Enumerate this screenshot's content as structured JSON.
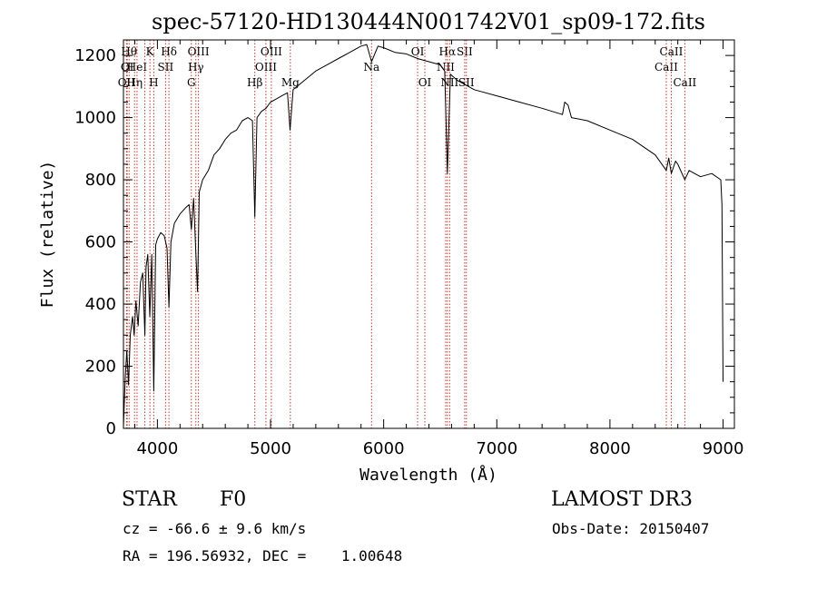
{
  "chart_data": {
    "type": "line",
    "title": "spec-57120-HD130444N001742V01_sp09-172.fits",
    "xlabel": "Wavelength (Å)",
    "ylabel": "Flux (relative)",
    "xlim": [
      3700,
      9100
    ],
    "ylim": [
      0,
      1250
    ],
    "x_ticks": [
      4000,
      5000,
      6000,
      7000,
      8000,
      9000
    ],
    "x_tick_labels": [
      "4000",
      "5000",
      "6000",
      "7000",
      "8000",
      "9000"
    ],
    "y_ticks": [
      0,
      200,
      400,
      600,
      800,
      1000,
      1200
    ],
    "y_tick_labels": [
      "0",
      "200",
      "400",
      "600",
      "800",
      "1000",
      "1200"
    ],
    "grid": false,
    "series": [
      {
        "color": "#000000",
        "points": [
          [
            3700,
            5
          ],
          [
            3715,
            160
          ],
          [
            3730,
            250
          ],
          [
            3745,
            140
          ],
          [
            3760,
            300
          ],
          [
            3780,
            360
          ],
          [
            3795,
            300
          ],
          [
            3810,
            410
          ],
          [
            3830,
            330
          ],
          [
            3850,
            470
          ],
          [
            3870,
            500
          ],
          [
            3889,
            300
          ],
          [
            3900,
            520
          ],
          [
            3915,
            560
          ],
          [
            3933,
            360
          ],
          [
            3950,
            560
          ],
          [
            3968,
            120
          ],
          [
            3985,
            590
          ],
          [
            4000,
            610
          ],
          [
            4030,
            630
          ],
          [
            4060,
            620
          ],
          [
            4085,
            580
          ],
          [
            4102,
            390
          ],
          [
            4120,
            600
          ],
          [
            4150,
            660
          ],
          [
            4200,
            690
          ],
          [
            4250,
            710
          ],
          [
            4280,
            720
          ],
          [
            4300,
            640
          ],
          [
            4320,
            740
          ],
          [
            4340,
            560
          ],
          [
            4355,
            440
          ],
          [
            4370,
            760
          ],
          [
            4400,
            800
          ],
          [
            4450,
            830
          ],
          [
            4500,
            880
          ],
          [
            4550,
            900
          ],
          [
            4600,
            930
          ],
          [
            4650,
            950
          ],
          [
            4700,
            960
          ],
          [
            4750,
            990
          ],
          [
            4800,
            1000
          ],
          [
            4840,
            990
          ],
          [
            4861,
            680
          ],
          [
            4880,
            1000
          ],
          [
            4920,
            1020
          ],
          [
            4960,
            1030
          ],
          [
            5000,
            1050
          ],
          [
            5050,
            1060
          ],
          [
            5100,
            1070
          ],
          [
            5150,
            1080
          ],
          [
            5172,
            960
          ],
          [
            5200,
            1090
          ],
          [
            5300,
            1120
          ],
          [
            5400,
            1150
          ],
          [
            5500,
            1170
          ],
          [
            5600,
            1190
          ],
          [
            5700,
            1210
          ],
          [
            5800,
            1230
          ],
          [
            5850,
            1235
          ],
          [
            5893,
            1180
          ],
          [
            5950,
            1230
          ],
          [
            6000,
            1225
          ],
          [
            6100,
            1210
          ],
          [
            6200,
            1205
          ],
          [
            6300,
            1190
          ],
          [
            6400,
            1180
          ],
          [
            6500,
            1170
          ],
          [
            6540,
            1150
          ],
          [
            6563,
            820
          ],
          [
            6590,
            1140
          ],
          [
            6650,
            1120
          ],
          [
            6700,
            1110
          ],
          [
            6800,
            1090
          ],
          [
            7000,
            1070
          ],
          [
            7200,
            1050
          ],
          [
            7400,
            1030
          ],
          [
            7580,
            1010
          ],
          [
            7600,
            1050
          ],
          [
            7630,
            1040
          ],
          [
            7660,
            1000
          ],
          [
            7800,
            990
          ],
          [
            8000,
            960
          ],
          [
            8200,
            930
          ],
          [
            8400,
            880
          ],
          [
            8498,
            830
          ],
          [
            8520,
            870
          ],
          [
            8542,
            820
          ],
          [
            8580,
            860
          ],
          [
            8600,
            850
          ],
          [
            8662,
            800
          ],
          [
            8700,
            830
          ],
          [
            8800,
            810
          ],
          [
            8900,
            820
          ],
          [
            8980,
            800
          ],
          [
            8990,
            720
          ],
          [
            9000,
            150
          ]
        ]
      }
    ],
    "line_markers": [
      {
        "x": 3727,
        "label": "OII",
        "row": 3
      },
      {
        "x": 3733,
        "label": "OI",
        "row": 2
      },
      {
        "x": 3750,
        "label": "Hθ",
        "row": 1
      },
      {
        "x": 3798,
        "label": "Hη",
        "row": 3
      },
      {
        "x": 3820,
        "label": "HeI",
        "row": 2
      },
      {
        "x": 3889,
        "label": "",
        "row": 0
      },
      {
        "x": 3934,
        "label": "K",
        "row": 1
      },
      {
        "x": 3968,
        "label": "H",
        "row": 3
      },
      {
        "x": 4072,
        "label": "SII",
        "row": 2
      },
      {
        "x": 4102,
        "label": "Hδ",
        "row": 1
      },
      {
        "x": 4300,
        "label": "G",
        "row": 3
      },
      {
        "x": 4340,
        "label": "Hγ",
        "row": 2
      },
      {
        "x": 4363,
        "label": "OIII",
        "row": 1
      },
      {
        "x": 4861,
        "label": "Hβ",
        "row": 3
      },
      {
        "x": 4959,
        "label": "OIII",
        "row": 2
      },
      {
        "x": 5007,
        "label": "OIII",
        "row": 1
      },
      {
        "x": 5175,
        "label": "Mg",
        "row": 3
      },
      {
        "x": 5893,
        "label": "Na",
        "row": 2
      },
      {
        "x": 6300,
        "label": "OI",
        "row": 1
      },
      {
        "x": 6364,
        "label": "OI",
        "row": 3
      },
      {
        "x": 6548,
        "label": "NII",
        "row": 2
      },
      {
        "x": 6563,
        "label": "Hα",
        "row": 1
      },
      {
        "x": 6583,
        "label": "NII",
        "row": 3
      },
      {
        "x": 6716,
        "label": "SII",
        "row": 1
      },
      {
        "x": 6731,
        "label": "SII",
        "row": 3
      },
      {
        "x": 8498,
        "label": "CaII",
        "row": 2
      },
      {
        "x": 8542,
        "label": "CaII",
        "row": 1
      },
      {
        "x": 8662,
        "label": "CaII",
        "row": 3
      }
    ]
  },
  "info": {
    "class_label": "STAR",
    "subclass_label": "F0",
    "survey": "LAMOST DR3",
    "cz_text": "cz = -66.6 ± 9.6 km/s",
    "obs_date": "Obs-Date: 20150407",
    "coords_text": "RA = 196.56932, DEC =    1.00648"
  }
}
